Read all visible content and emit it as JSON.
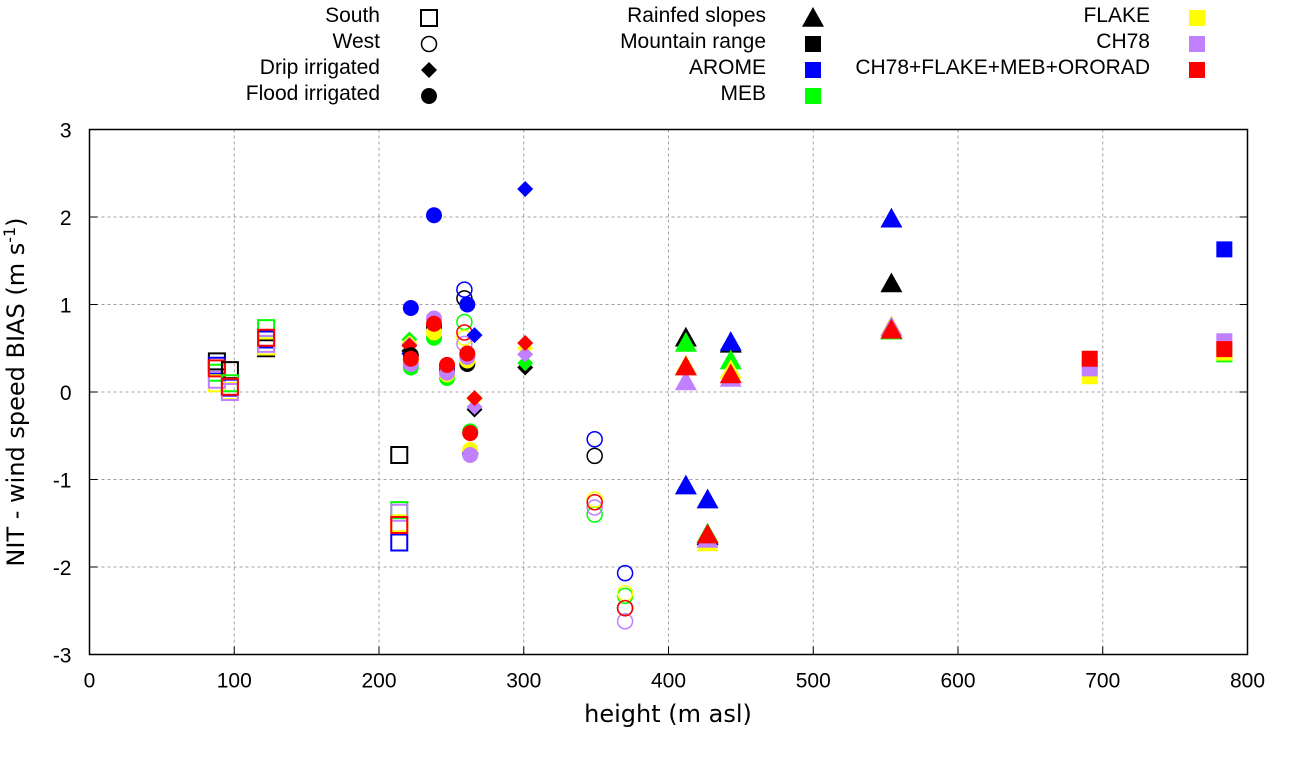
{
  "chart_data": {
    "type": "scatter",
    "title": "",
    "xlabel": "height (m asl)",
    "ylabel": "NIT - wind speed BIAS (m s-1)",
    "ylabel_main": "NIT - wind speed BIAS (m s",
    "ylabel_sup": "-1",
    "ylabel_end": ")",
    "xlim": [
      0,
      800
    ],
    "ylim": [
      -3,
      3
    ],
    "xticks": [
      0,
      100,
      200,
      300,
      400,
      500,
      600,
      700,
      800
    ],
    "yticks": [
      -3,
      -2,
      -1,
      0,
      1,
      2,
      3
    ],
    "grid": true,
    "legend_position": "top",
    "shape_legend": [
      {
        "name": "South",
        "shape": "square-open"
      },
      {
        "name": "West",
        "shape": "circle-open"
      },
      {
        "name": "Drip irrigated",
        "shape": "diamond"
      },
      {
        "name": "Flood irrigated",
        "shape": "circle"
      },
      {
        "name": "Rainfed slopes",
        "shape": "triangle"
      },
      {
        "name": "Mountain range",
        "shape": "square"
      }
    ],
    "color_legend": [
      {
        "name": "AROME",
        "color": "#0000ff"
      },
      {
        "name": "MEB",
        "color": "#00ff00"
      },
      {
        "name": "FLAKE",
        "color": "#ffff00"
      },
      {
        "name": "CH78",
        "color": "#c080ff"
      },
      {
        "name": "CH78+FLAKE+MEB+ORORAD",
        "color": "#ff0000"
      }
    ],
    "reference_color": "#000000",
    "series": [
      {
        "site": "South",
        "shape": "square-open",
        "x": 88,
        "values": {
          "ref": 0.35,
          "AROME": 0.3,
          "MEB": 0.22,
          "FLAKE": 0.1,
          "CH78": 0.14,
          "CH78+FLAKE+MEB+ORORAD": 0.27
        }
      },
      {
        "site": "South",
        "shape": "square-open",
        "x": 97,
        "values": {
          "ref": 0.25,
          "AROME": 0.05,
          "MEB": 0.1,
          "FLAKE": 0.01,
          "CH78": 0.0,
          "CH78+FLAKE+MEB+ORORAD": 0.06
        }
      },
      {
        "site": "South",
        "shape": "square-open",
        "x": 122,
        "values": {
          "ref": 0.5,
          "AROME": 0.6,
          "MEB": 0.73,
          "FLAKE": 0.52,
          "CH78": 0.55,
          "CH78+FLAKE+MEB+ORORAD": 0.62
        }
      },
      {
        "site": "South",
        "shape": "square-open",
        "x": 214,
        "values": {
          "ref": -0.72,
          "AROME": -1.72,
          "MEB": -1.35,
          "FLAKE": -1.5,
          "CH78": -1.38,
          "CH78+FLAKE+MEB+ORORAD": -1.52
        }
      },
      {
        "site": "West",
        "shape": "circle-open",
        "x": 259,
        "values": {
          "ref": 1.07,
          "AROME": 1.17,
          "MEB": 0.8,
          "FLAKE": 0.62,
          "CH78": 0.55,
          "CH78+FLAKE+MEB+ORORAD": 0.68
        }
      },
      {
        "site": "West",
        "shape": "circle-open",
        "x": 349,
        "values": {
          "ref": -0.73,
          "AROME": -0.54,
          "MEB": -1.4,
          "FLAKE": -1.23,
          "CH78": -1.32,
          "CH78+FLAKE+MEB+ORORAD": -1.26
        }
      },
      {
        "site": "West",
        "shape": "circle-open",
        "x": 370,
        "values": {
          "ref": -2.47,
          "AROME": -2.07,
          "MEB": -2.33,
          "FLAKE": -2.3,
          "CH78": -2.62,
          "CH78+FLAKE+MEB+ORORAD": -2.47
        }
      },
      {
        "site": "Drip irrigated",
        "shape": "diamond",
        "x": 221,
        "values": {
          "ref": 0.47,
          "AROME": 0.44,
          "MEB": 0.6,
          "FLAKE": 0.56,
          "CH78": 0.54,
          "CH78+FLAKE+MEB+ORORAD": 0.53
        }
      },
      {
        "site": "Drip irrigated",
        "shape": "diamond",
        "x": 266,
        "values": {
          "ref": -0.2,
          "AROME": 0.65,
          "MEB": -0.07,
          "FLAKE": -0.08,
          "CH78": -0.17,
          "CH78+FLAKE+MEB+ORORAD": -0.07
        }
      },
      {
        "site": "Drip irrigated",
        "shape": "diamond",
        "x": 301,
        "values": {
          "ref": 0.28,
          "AROME": 2.32,
          "MEB": 0.33,
          "FLAKE": 0.5,
          "CH78": 0.43,
          "CH78+FLAKE+MEB+ORORAD": 0.56
        }
      },
      {
        "site": "Flood irrigated",
        "shape": "circle",
        "x": 222,
        "values": {
          "ref": 0.42,
          "AROME": 0.96,
          "MEB": 0.28,
          "FLAKE": 0.36,
          "CH78": 0.32,
          "CH78+FLAKE+MEB+ORORAD": 0.38
        }
      },
      {
        "site": "Flood irrigated",
        "shape": "circle",
        "x": 238,
        "values": {
          "ref": 0.75,
          "AROME": 2.02,
          "MEB": 0.62,
          "FLAKE": 0.68,
          "CH78": 0.84,
          "CH78+FLAKE+MEB+ORORAD": 0.78
        }
      },
      {
        "site": "Flood irrigated",
        "shape": "circle",
        "x": 247,
        "values": {
          "ref": 0.25,
          "AROME": 0.3,
          "MEB": 0.16,
          "FLAKE": 0.2,
          "CH78": 0.22,
          "CH78+FLAKE+MEB+ORORAD": 0.31
        }
      },
      {
        "site": "Flood irrigated",
        "shape": "circle",
        "x": 261,
        "values": {
          "ref": 0.32,
          "AROME": 1.0,
          "MEB": 0.42,
          "FLAKE": 0.36,
          "CH78": 0.4,
          "CH78+FLAKE+MEB+ORORAD": 0.44
        }
      },
      {
        "site": "Flood irrigated",
        "shape": "circle",
        "x": 263,
        "values": {
          "ref": -0.7,
          "AROME": -0.7,
          "MEB": -0.45,
          "FLAKE": -0.66,
          "CH78": -0.72,
          "CH78+FLAKE+MEB+ORORAD": -0.47
        }
      },
      {
        "site": "Rainfed slopes",
        "shape": "triangle",
        "x": 412,
        "values": {
          "ref": 0.62,
          "AROME": -1.07,
          "MEB": 0.56,
          "FLAKE": 0.3,
          "CH78": 0.12,
          "CH78+FLAKE+MEB+ORORAD": 0.29
        }
      },
      {
        "site": "Rainfed slopes",
        "shape": "triangle",
        "x": 427,
        "values": {
          "ref": -1.65,
          "AROME": -1.23,
          "MEB": -1.62,
          "FLAKE": -1.72,
          "CH78": -1.68,
          "CH78+FLAKE+MEB+ORORAD": -1.63
        }
      },
      {
        "site": "Rainfed slopes",
        "shape": "triangle",
        "x": 443,
        "values": {
          "ref": 0.55,
          "AROME": 0.57,
          "MEB": 0.36,
          "FLAKE": 0.25,
          "CH78": 0.16,
          "CH78+FLAKE+MEB+ORORAD": 0.2
        }
      },
      {
        "site": "Rainfed slopes",
        "shape": "triangle",
        "x": 554,
        "values": {
          "ref": 1.24,
          "AROME": 1.98,
          "MEB": 0.7,
          "FLAKE": 0.75,
          "CH78": 0.74,
          "CH78+FLAKE+MEB+ORORAD": 0.71
        }
      },
      {
        "site": "Mountain range",
        "shape": "square",
        "x": 691,
        "values": {
          "ref": null,
          "AROME": null,
          "MEB": null,
          "FLAKE": 0.18,
          "CH78": 0.27,
          "CH78+FLAKE+MEB+ORORAD": 0.38
        }
      },
      {
        "site": "Mountain range",
        "shape": "square",
        "x": 784,
        "values": {
          "ref": null,
          "AROME": 1.63,
          "MEB": 0.43,
          "FLAKE": 0.45,
          "CH78": 0.58,
          "CH78+FLAKE+MEB+ORORAD": 0.49
        }
      }
    ]
  }
}
